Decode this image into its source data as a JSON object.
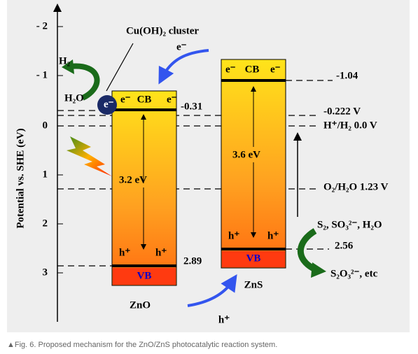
{
  "axis": {
    "label": "Potential vs. SHE (eV)",
    "ticks": [
      "- 2",
      "- 1",
      "0",
      "1",
      "2",
      "3"
    ]
  },
  "zno": {
    "name": "ZnO",
    "cb": "CB",
    "vb": "VB",
    "electrons": [
      "e⁻",
      "e⁻"
    ],
    "holes": [
      "h⁺",
      "h⁺"
    ],
    "gap": "3.2 eV",
    "cb_potential": "-0.31",
    "vb_potential": "2.89"
  },
  "zns": {
    "name": "ZnS",
    "cb": "CB",
    "vb": "VB",
    "electrons": [
      "e⁻",
      "e⁻"
    ],
    "holes": [
      "h⁺",
      "h⁺"
    ],
    "gap": "3.6 eV",
    "cb_potential": "-1.04",
    "vb_potential": "2.56"
  },
  "cluster": {
    "label": "Cu(OH)₂ cluster",
    "electron": "e⁻"
  },
  "h2_evolution": {
    "product": "H₂",
    "reactant": "H₂O"
  },
  "levels": {
    "cluster_potential": "-0.222 V",
    "h2_couple": "H⁺/H₂  0.0 V",
    "o2_couple": "O₂/H₂O  1.23 V"
  },
  "transfer": {
    "electron": "e⁻",
    "hole": "h⁺"
  },
  "sulfide": {
    "reactants": "S₂, SO₃²⁻, H₂O",
    "products": "S₂O₃²⁻, etc"
  },
  "caption": "▲Fig. 6. Proposed mechanism for the ZnO/ZnS photocatalytic reaction system."
}
